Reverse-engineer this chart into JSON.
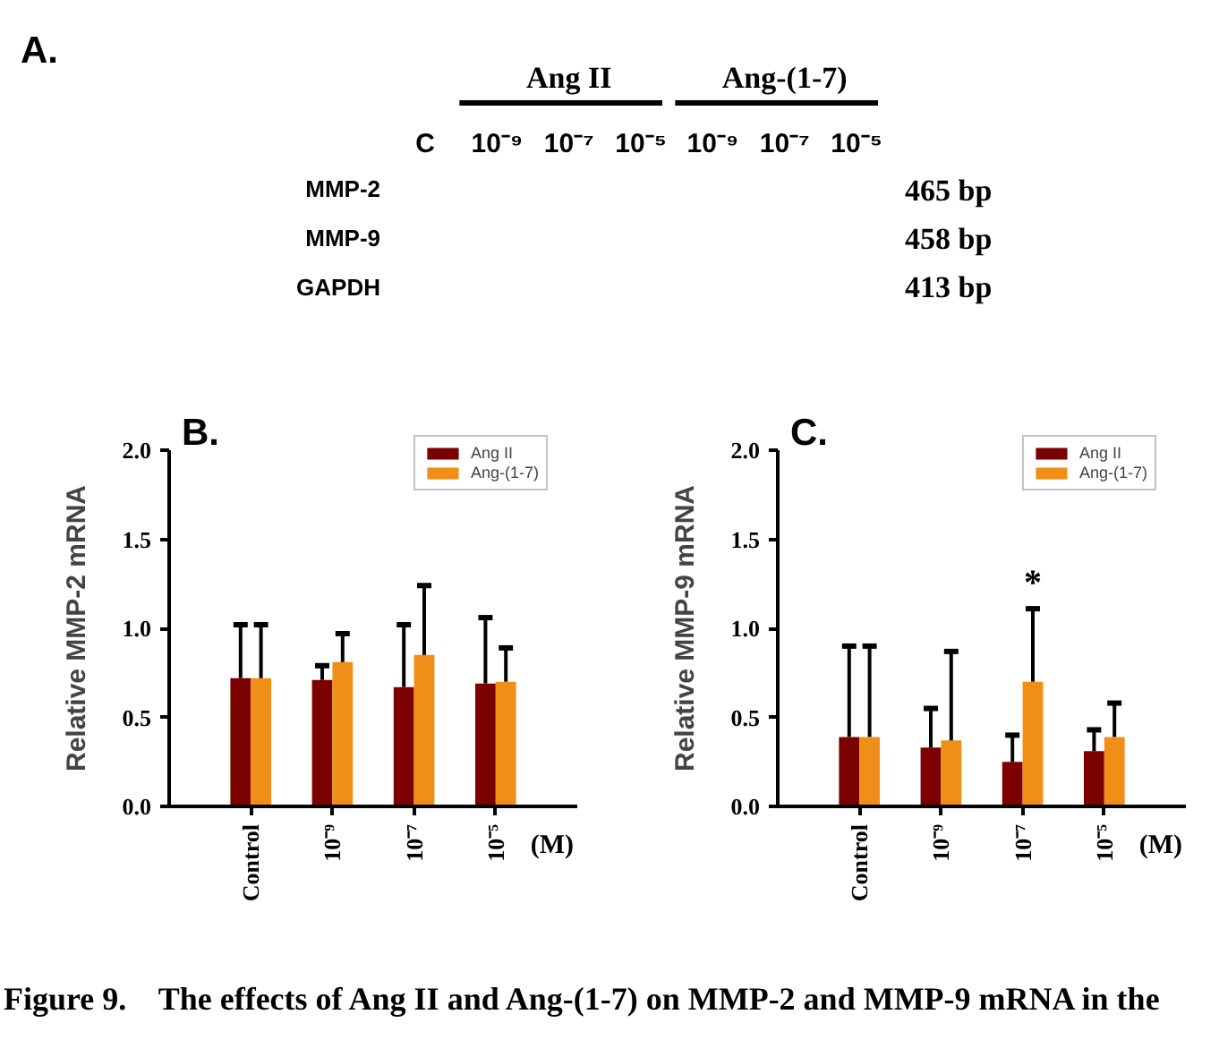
{
  "chart_data": [
    {
      "type": "other",
      "title": "A.",
      "categories": [
        "C",
        "10⁻⁹",
        "10⁻⁷",
        "10⁻⁵",
        "10⁻⁹",
        "10⁻⁷",
        "10⁻⁵"
      ],
      "y_categories": [
        "MMP-2",
        "MMP-9",
        "GAPDH"
      ],
      "y2_categories": [
        "465 bp",
        "458 bp",
        "413 bp"
      ],
      "annotations": [
        "Ang II",
        "Ang-(1-7)"
      ]
    },
    {
      "type": "bar",
      "title": "B.",
      "ylabel": "Relative MMP-2 mRNA",
      "xlabel": "(M)",
      "categories": [
        "Control",
        "10⁻⁹",
        "10⁻⁷",
        "10⁻⁵"
      ],
      "series": [
        {
          "name": "Ang II",
          "color": "#7b0000",
          "values": [
            0.72,
            0.71,
            0.67,
            0.69
          ],
          "errors": [
            [
              0.72,
              1.02
            ],
            [
              0.71,
              0.79
            ],
            [
              0.67,
              1.02
            ],
            [
              0.69,
              1.06
            ]
          ]
        },
        {
          "name": "Ang-(1-7)",
          "color": "#ef8f17",
          "values": [
            0.72,
            0.81,
            0.85,
            0.7
          ],
          "errors": [
            [
              0.72,
              1.02
            ],
            [
              0.81,
              0.97
            ],
            [
              0.85,
              1.24
            ],
            [
              0.7,
              0.89
            ]
          ]
        }
      ],
      "ylim": [
        0,
        2
      ],
      "yticks": [
        {
          "value": 0,
          "label": "0.0"
        },
        {
          "value": 0.5,
          "label": "0.5"
        },
        {
          "value": 1,
          "label": "1.0"
        },
        {
          "value": 1.5,
          "label": "1.5"
        },
        {
          "value": 2,
          "label": "2.0"
        }
      ],
      "legend": "top right"
    },
    {
      "type": "bar",
      "title": "C.",
      "ylabel": "Relative MMP-9 mRNA",
      "xlabel": "(M)",
      "categories": [
        "Control",
        "10⁻⁹",
        "10⁻⁷",
        "10⁻⁵"
      ],
      "series": [
        {
          "name": "Ang II",
          "color": "#7b0000",
          "values": [
            0.39,
            0.33,
            0.25,
            0.31
          ],
          "errors": [
            [
              0.39,
              0.9
            ],
            [
              0.33,
              0.55
            ],
            [
              0.25,
              0.4
            ],
            [
              0.31,
              0.43
            ]
          ]
        },
        {
          "name": "Ang-(1-7)",
          "color": "#ef8f17",
          "values": [
            0.39,
            0.37,
            0.7,
            0.39
          ],
          "errors": [
            [
              0.39,
              0.9
            ],
            [
              0.37,
              0.87
            ],
            [
              0.7,
              1.11
            ],
            [
              0.39,
              0.58
            ]
          ]
        }
      ],
      "ylim": [
        0,
        2
      ],
      "yticks": [
        {
          "value": 0,
          "label": "0.0"
        },
        {
          "value": 0.5,
          "label": "0.5"
        },
        {
          "value": 1,
          "label": "1.0"
        },
        {
          "value": 1.5,
          "label": "1.5"
        },
        {
          "value": 2,
          "label": "2.0"
        }
      ],
      "legend": "top right",
      "annotations": [
        {
          "text": "*",
          "x": "10⁻⁷",
          "y": 1.11
        },
        "Figure 9.    The effects of Ang II and Ang-(1-7) on MMP-2 and MMP-9 mRNA in the"
      ]
    }
  ]
}
